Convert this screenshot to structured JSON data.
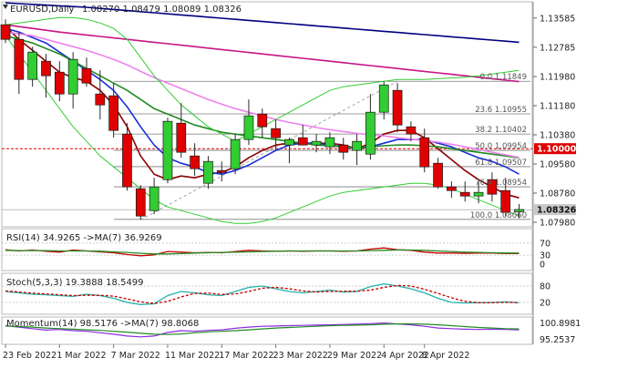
{
  "header": {
    "symbol": "EURUSD,Daily",
    "ohlc": "1.08270 1.08479 1.08089 1.08326"
  },
  "chart_data": [
    {
      "type": "candlestick",
      "name": "main",
      "price_ticks": [
        1.13585,
        1.12785,
        1.1198,
        1.1118,
        1.1038,
        1.0958,
        1.0878,
        1.0798
      ],
      "current_price": 1.08326,
      "level_line": 1.1,
      "fibonacci": [
        {
          "label": "0.0 1.11849",
          "value": 1.11849
        },
        {
          "label": "23.6 1.10955",
          "value": 1.10955
        },
        {
          "label": "38.2 1.10402",
          "value": 1.10402
        },
        {
          "label": "50.0 1.09954",
          "value": 1.09954
        },
        {
          "label": "61.8 1.09507",
          "value": 1.09507
        },
        {
          "label": "76.4 1.08954",
          "value": 1.08954
        },
        {
          "label": "100.0 1.08060",
          "value": 1.0806
        }
      ],
      "candles": [
        {
          "o": 1.134,
          "h": 1.1355,
          "l": 1.129,
          "c": 1.13
        },
        {
          "o": 1.13,
          "h": 1.132,
          "l": 1.115,
          "c": 1.119
        },
        {
          "o": 1.119,
          "h": 1.128,
          "l": 1.117,
          "c": 1.1265
        },
        {
          "o": 1.124,
          "h": 1.126,
          "l": 1.114,
          "c": 1.12
        },
        {
          "o": 1.121,
          "h": 1.124,
          "l": 1.113,
          "c": 1.115
        },
        {
          "o": 1.115,
          "h": 1.1265,
          "l": 1.111,
          "c": 1.1245
        },
        {
          "o": 1.122,
          "h": 1.125,
          "l": 1.117,
          "c": 1.118
        },
        {
          "o": 1.115,
          "h": 1.1215,
          "l": 1.108,
          "c": 1.112
        },
        {
          "o": 1.1145,
          "h": 1.118,
          "l": 1.103,
          "c": 1.105
        },
        {
          "o": 1.104,
          "h": 1.107,
          "l": 1.0885,
          "c": 1.0895
        },
        {
          "o": 1.089,
          "h": 1.09,
          "l": 1.0805,
          "c": 1.0815
        },
        {
          "o": 1.083,
          "h": 1.092,
          "l": 1.082,
          "c": 1.0895
        },
        {
          "o": 1.0915,
          "h": 1.1085,
          "l": 1.0905,
          "c": 1.1075
        },
        {
          "o": 1.107,
          "h": 1.1125,
          "l": 1.0975,
          "c": 1.099
        },
        {
          "o": 1.098,
          "h": 1.1015,
          "l": 1.0925,
          "c": 1.0945
        },
        {
          "o": 1.0905,
          "h": 1.098,
          "l": 1.089,
          "c": 1.0965
        },
        {
          "o": 1.094,
          "h": 1.0965,
          "l": 1.091,
          "c": 1.0935
        },
        {
          "o": 1.0945,
          "h": 1.104,
          "l": 1.093,
          "c": 1.1025
        },
        {
          "o": 1.1025,
          "h": 1.1135,
          "l": 1.101,
          "c": 1.109
        },
        {
          "o": 1.1095,
          "h": 1.111,
          "l": 1.103,
          "c": 1.106
        },
        {
          "o": 1.1055,
          "h": 1.108,
          "l": 1.0995,
          "c": 1.103
        },
        {
          "o": 1.101,
          "h": 1.103,
          "l": 1.096,
          "c": 1.1025
        },
        {
          "o": 1.103,
          "h": 1.1065,
          "l": 1.101,
          "c": 1.101
        },
        {
          "o": 1.101,
          "h": 1.104,
          "l": 1.099,
          "c": 1.102
        },
        {
          "o": 1.1005,
          "h": 1.1045,
          "l": 1.0985,
          "c": 1.103
        },
        {
          "o": 1.101,
          "h": 1.103,
          "l": 1.097,
          "c": 1.099
        },
        {
          "o": 1.0995,
          "h": 1.104,
          "l": 1.0955,
          "c": 1.102
        },
        {
          "o": 1.0985,
          "h": 1.115,
          "l": 1.097,
          "c": 1.11
        },
        {
          "o": 1.11,
          "h": 1.1185,
          "l": 1.108,
          "c": 1.1175
        },
        {
          "o": 1.116,
          "h": 1.118,
          "l": 1.1045,
          "c": 1.1065
        },
        {
          "o": 1.106,
          "h": 1.1075,
          "l": 1.102,
          "c": 1.104
        },
        {
          "o": 1.103,
          "h": 1.1055,
          "l": 1.0935,
          "c": 1.095
        },
        {
          "o": 1.096,
          "h": 1.0975,
          "l": 1.089,
          "c": 1.0895
        },
        {
          "o": 1.0895,
          "h": 1.091,
          "l": 1.0865,
          "c": 1.0885
        },
        {
          "o": 1.088,
          "h": 1.091,
          "l": 1.0855,
          "c": 1.087
        },
        {
          "o": 1.087,
          "h": 1.0915,
          "l": 1.085,
          "c": 1.088
        },
        {
          "o": 1.0915,
          "h": 1.0935,
          "l": 1.0855,
          "c": 1.0875
        },
        {
          "o": 1.0885,
          "h": 1.092,
          "l": 1.0815,
          "c": 1.0825
        },
        {
          "o": 1.0827,
          "h": 1.0848,
          "l": 1.0809,
          "c": 1.0833
        }
      ],
      "moving_averages": [
        {
          "color": "#8b0000",
          "values": [
            1.1335,
            1.13,
            1.127,
            1.124,
            1.121,
            1.1195,
            1.1185,
            1.116,
            1.112,
            1.106,
            1.098,
            1.093,
            1.0915,
            1.0925,
            1.092,
            1.093,
            1.0935,
            1.095,
            1.0975,
            1.0995,
            1.101,
            1.1015,
            1.1015,
            1.1015,
            1.1015,
            1.101,
            1.1,
            1.1015,
            1.104,
            1.105,
            1.105,
            1.103,
            1.1,
            1.097,
            1.094,
            1.0915,
            1.0895,
            1.0875,
            1.0865
          ]
        },
        {
          "color": "#1a2fd6",
          "values": [
            1.133,
            1.132,
            1.1305,
            1.129,
            1.1265,
            1.124,
            1.1215,
            1.119,
            1.116,
            1.1115,
            1.106,
            1.101,
            1.0975,
            1.096,
            1.095,
            1.0935,
            1.093,
            1.094,
            1.0955,
            1.0975,
            1.0995,
            1.101,
            1.1015,
            1.1015,
            1.101,
            1.1005,
            1.1,
            1.1005,
            1.1015,
            1.1025,
            1.1025,
            1.1025,
            1.1015,
            1.1005,
            1.099,
            1.0975,
            1.0965,
            1.095,
            1.093
          ]
        },
        {
          "color": "#228b22",
          "values": [
            1.131,
            1.13,
            1.129,
            1.1275,
            1.126,
            1.124,
            1.122,
            1.12,
            1.118,
            1.116,
            1.1135,
            1.111,
            1.1095,
            1.108,
            1.1065,
            1.1055,
            1.1045,
            1.104,
            1.1035,
            1.103,
            1.1025,
            1.102,
            1.1015,
            1.101,
            1.1008,
            1.1005,
            1.1003,
            1.1005,
            1.1008,
            1.101,
            1.101,
            1.1008,
            1.1005,
            1.1,
            1.0995,
            1.099,
            1.0985,
            1.098,
            1.0975
          ]
        },
        {
          "color": "#ee82ee",
          "values": [
            1.132,
            1.1315,
            1.131,
            1.13,
            1.129,
            1.128,
            1.127,
            1.1258,
            1.1245,
            1.123,
            1.1212,
            1.1195,
            1.118,
            1.1165,
            1.115,
            1.1135,
            1.1122,
            1.111,
            1.11,
            1.109,
            1.108,
            1.1072,
            1.1065,
            1.1058,
            1.1052,
            1.1047,
            1.1042,
            1.1038,
            1.1035,
            1.103,
            1.1026,
            1.1022,
            1.1018,
            1.1012,
            1.1005,
            1.0998,
            1.099,
            1.0983,
            1.0976
          ]
        },
        {
          "color": "#c71585",
          "values": [
            1.134,
            1.1335,
            1.133,
            1.1325,
            1.132,
            1.1316,
            1.1312,
            1.1308,
            1.1304,
            1.13,
            1.1296,
            1.1292,
            1.1288,
            1.1284,
            1.128,
            1.1276,
            1.1272,
            1.1268,
            1.1264,
            1.126,
            1.1256,
            1.1252,
            1.1248,
            1.1244,
            1.124,
            1.1236,
            1.1232,
            1.1228,
            1.1224,
            1.122,
            1.1216,
            1.1212,
            1.1208,
            1.1204,
            1.12,
            1.1196,
            1.1192,
            1.1188,
            1.1184
          ]
        },
        {
          "color": "#000080",
          "values": [
            1.14,
            1.1398,
            1.1396,
            1.1394,
            1.1392,
            1.139,
            1.1388,
            1.1385,
            1.1382,
            1.1379,
            1.1376,
            1.1373,
            1.137,
            1.1367,
            1.1364,
            1.1361,
            1.1358,
            1.1355,
            1.1352,
            1.1349,
            1.1346,
            1.1343,
            1.134,
            1.1337,
            1.1334,
            1.1331,
            1.1328,
            1.1325,
            1.1322,
            1.1319,
            1.1316,
            1.1313,
            1.131,
            1.1307,
            1.1304,
            1.1301,
            1.1298,
            1.1295,
            1.1292
          ]
        },
        {
          "color": "#32cd32",
          "values": [
            1.134,
            1.1345,
            1.135,
            1.1355,
            1.136,
            1.136,
            1.1355,
            1.1345,
            1.133,
            1.13,
            1.125,
            1.12,
            1.116,
            1.112,
            1.109,
            1.106,
            1.104,
            1.102,
            1.104,
            1.106,
            1.108,
            1.11,
            1.112,
            1.114,
            1.116,
            1.117,
            1.1175,
            1.118,
            1.1185,
            1.119,
            1.119,
            1.119,
            1.1192,
            1.1194,
            1.1196,
            1.12,
            1.1205,
            1.121,
            1.1215
          ]
        },
        {
          "color": "#32cd32",
          "values": [
            1.131,
            1.126,
            1.121,
            1.116,
            1.111,
            1.106,
            1.102,
            1.098,
            1.095,
            1.092,
            1.089,
            1.086,
            1.084,
            1.083,
            1.082,
            1.081,
            1.08,
            1.0795,
            1.0795,
            1.08,
            1.081,
            1.0825,
            1.084,
            1.0855,
            1.087,
            1.088,
            1.0885,
            1.089,
            1.0895,
            1.09,
            1.0905,
            1.0905,
            1.09,
            1.089,
            1.0875,
            1.086,
            1.0845,
            1.083,
            1.0815
          ]
        }
      ],
      "trend_line": {
        "from": {
          "index": 10,
          "price": 1.0805
        },
        "to": {
          "index": 29,
          "price": 1.1185
        }
      }
    },
    {
      "type": "line",
      "name": "rsi",
      "title": "RSI(14) 34.9265 ->MA(7) 36.9269",
      "y_ticks": [
        70,
        30,
        0
      ],
      "ylim": [
        0,
        100
      ],
      "series": [
        {
          "color": "#c80000",
          "values": [
            48,
            44,
            47,
            43,
            40,
            47,
            44,
            41,
            38,
            32,
            28,
            31,
            42,
            40,
            38,
            39,
            38,
            42,
            46,
            44,
            43,
            44,
            43,
            44,
            44,
            43,
            44,
            50,
            54,
            48,
            46,
            40,
            37,
            37,
            36,
            37,
            37,
            35,
            35
          ]
        },
        {
          "color": "#228b22",
          "values": [
            46,
            45,
            45,
            45,
            44,
            44,
            44,
            43,
            41,
            39,
            36,
            34,
            34,
            35,
            37,
            38,
            39,
            40,
            41,
            42,
            43,
            44,
            44,
            44,
            44,
            44,
            44,
            45,
            46,
            47,
            47,
            46,
            44,
            42,
            40,
            39,
            38,
            37,
            37
          ]
        }
      ]
    },
    {
      "type": "line",
      "name": "stochastic",
      "title": "Stoch(5,3,3) 19.3888 18.5499",
      "y_ticks": [
        80,
        20
      ],
      "ylim": [
        0,
        100
      ],
      "series": [
        {
          "color": "#20b2aa",
          "values": [
            60,
            55,
            50,
            48,
            45,
            42,
            50,
            45,
            35,
            20,
            12,
            15,
            45,
            60,
            55,
            48,
            45,
            60,
            75,
            80,
            70,
            60,
            55,
            60,
            65,
            58,
            60,
            78,
            88,
            80,
            70,
            55,
            35,
            20,
            18,
            19,
            20,
            22,
            19
          ]
        },
        {
          "color": "#c80000",
          "values": [
            62,
            58,
            54,
            51,
            48,
            45,
            46,
            46,
            43,
            33,
            22,
            16,
            24,
            40,
            53,
            54,
            49,
            51,
            60,
            72,
            75,
            70,
            62,
            58,
            60,
            61,
            61,
            65,
            75,
            82,
            80,
            68,
            53,
            37,
            24,
            19,
            19,
            20,
            19
          ]
        }
      ]
    },
    {
      "type": "line",
      "name": "momentum",
      "title": "Momentum(14) 98.5176 ->MA(7) 98.8068",
      "y_ticks": [
        100.8981,
        95.2537
      ],
      "ylim": [
        94.5,
        101.3
      ],
      "series": [
        {
          "color": "#8a2be2",
          "values": [
            99.9,
            99.4,
            98.9,
            98.4,
            98.6,
            98.2,
            98.0,
            97.5,
            97.0,
            96.4,
            96.1,
            96.4,
            97.6,
            98.2,
            98.0,
            98.3,
            98.5,
            99.0,
            99.4,
            99.7,
            99.8,
            99.9,
            100.0,
            100.1,
            100.2,
            100.3,
            100.4,
            100.6,
            100.8,
            100.5,
            100.2,
            99.7,
            99.1,
            98.9,
            98.7,
            98.6,
            98.7,
            98.6,
            98.5
          ]
        },
        {
          "color": "#228b22",
          "values": [
            99.8,
            99.6,
            99.4,
            99.1,
            98.9,
            98.7,
            98.5,
            98.3,
            98.0,
            97.7,
            97.3,
            97.0,
            96.9,
            97.1,
            97.5,
            97.8,
            98.0,
            98.2,
            98.5,
            98.8,
            99.1,
            99.3,
            99.5,
            99.7,
            99.9,
            100.0,
            100.1,
            100.2,
            100.4,
            100.5,
            100.5,
            100.4,
            100.2,
            99.9,
            99.6,
            99.3,
            99.1,
            98.9,
            98.8
          ]
        }
      ]
    }
  ],
  "x_axis": {
    "labels": [
      {
        "label": "23 Feb 2022",
        "index": 0
      },
      {
        "label": "1 Mar 2022",
        "index": 4
      },
      {
        "label": "7 Mar 2022",
        "index": 8
      },
      {
        "label": "11 Mar 2022",
        "index": 12
      },
      {
        "label": "17 Mar 2022",
        "index": 16
      },
      {
        "label": "23 Mar 2022",
        "index": 20
      },
      {
        "label": "29 Mar 2022",
        "index": 24
      },
      {
        "label": "4 Apr 2022",
        "index": 28
      },
      {
        "label": "8 Apr 2022",
        "index": 31
      }
    ]
  },
  "colors": {
    "bull": "#32cd32",
    "bear": "#e00000",
    "level": "#e00000",
    "grid": "#c0c0c0",
    "text": "#222222"
  }
}
